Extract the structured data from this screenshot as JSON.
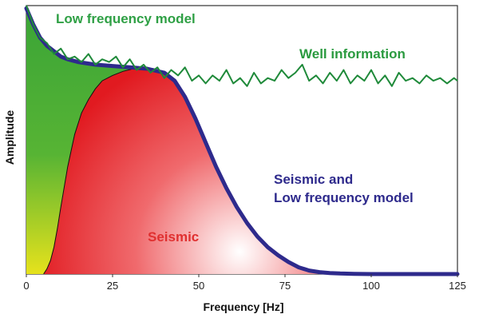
{
  "chart_data": {
    "type": "area",
    "xlabel": "Frequency [Hz]",
    "ylabel": "Amplitude",
    "xlim": [
      0,
      125
    ],
    "ylim": [
      0,
      1
    ],
    "x_ticks": [
      "0",
      "25",
      "50",
      "75",
      "100",
      "125"
    ],
    "y_ticks": [],
    "grid": false,
    "annotations": {
      "low_frequency": "Low frequency model",
      "well": "Well information",
      "combined_line1": "Seismic and",
      "combined_line2": "Low frequency model",
      "seismic": "Seismic"
    },
    "colors": {
      "well": "#1f8a3a",
      "combined": "#2e2a8c",
      "seismic": "#e8262b",
      "low_frequency": "#3aa437",
      "low_frequency_base": "#e6e21c",
      "annotation_low_frequency": "#2fa045",
      "annotation_well": "#2a9a3f",
      "annotation_combined": "#2e2a8c",
      "annotation_seismic": "#e03030"
    },
    "series": [
      {
        "key": "well",
        "x": [
          0,
          2,
          4,
          6,
          8,
          10,
          12,
          14,
          16,
          18,
          20,
          22,
          24,
          26,
          28,
          30,
          32,
          34,
          36,
          38,
          40,
          42,
          44,
          46,
          48,
          50,
          52,
          54,
          56,
          58,
          60,
          62,
          64,
          66,
          68,
          70,
          72,
          74,
          76,
          78,
          80,
          82,
          84,
          86,
          88,
          90,
          92,
          94,
          96,
          98,
          100,
          102,
          104,
          106,
          108,
          110,
          112,
          114,
          116,
          118,
          120,
          122,
          124,
          125
        ],
        "y": [
          1.0,
          0.93,
          0.88,
          0.86,
          0.82,
          0.84,
          0.8,
          0.81,
          0.79,
          0.82,
          0.78,
          0.8,
          0.79,
          0.81,
          0.77,
          0.8,
          0.76,
          0.78,
          0.75,
          0.77,
          0.73,
          0.76,
          0.74,
          0.77,
          0.72,
          0.74,
          0.71,
          0.74,
          0.72,
          0.76,
          0.71,
          0.73,
          0.7,
          0.75,
          0.71,
          0.73,
          0.72,
          0.76,
          0.73,
          0.75,
          0.78,
          0.72,
          0.74,
          0.71,
          0.75,
          0.72,
          0.76,
          0.71,
          0.74,
          0.72,
          0.76,
          0.71,
          0.74,
          0.7,
          0.75,
          0.72,
          0.73,
          0.71,
          0.74,
          0.72,
          0.73,
          0.71,
          0.73,
          0.72
        ]
      },
      {
        "key": "combined",
        "x": [
          0,
          2,
          4,
          6,
          8,
          10,
          12,
          15,
          20,
          25,
          30,
          35,
          40,
          43,
          46,
          49,
          52,
          55,
          58,
          61,
          64,
          67,
          70,
          73,
          76,
          79,
          82,
          85,
          88,
          91,
          95,
          100,
          110,
          125
        ],
        "y": [
          0.99,
          0.93,
          0.88,
          0.85,
          0.83,
          0.81,
          0.8,
          0.79,
          0.78,
          0.775,
          0.77,
          0.765,
          0.75,
          0.72,
          0.66,
          0.58,
          0.49,
          0.4,
          0.32,
          0.25,
          0.19,
          0.14,
          0.1,
          0.07,
          0.045,
          0.025,
          0.013,
          0.007,
          0.004,
          0.002,
          0.001,
          0.0,
          0.0,
          0.0
        ]
      },
      {
        "key": "seismic",
        "x": [
          5,
          6,
          7,
          8,
          9,
          10,
          12,
          14,
          16,
          18,
          20,
          22,
          25,
          28,
          31,
          34,
          37,
          40,
          43,
          46,
          49,
          52,
          55,
          58,
          61,
          64,
          67,
          70,
          73,
          76,
          79,
          82,
          85,
          88,
          91,
          95
        ],
        "y": [
          0.0,
          0.02,
          0.05,
          0.1,
          0.17,
          0.25,
          0.4,
          0.52,
          0.6,
          0.65,
          0.69,
          0.72,
          0.74,
          0.755,
          0.765,
          0.77,
          0.765,
          0.75,
          0.72,
          0.66,
          0.58,
          0.49,
          0.4,
          0.32,
          0.25,
          0.19,
          0.14,
          0.1,
          0.07,
          0.045,
          0.025,
          0.013,
          0.007,
          0.004,
          0.002,
          0.0
        ]
      },
      {
        "key": "low_frequency",
        "x": [
          0,
          2,
          4,
          6,
          8,
          10,
          12,
          15,
          20,
          25,
          30,
          35,
          40,
          43
        ],
        "y": [
          0.99,
          0.93,
          0.88,
          0.85,
          0.83,
          0.81,
          0.8,
          0.79,
          0.78,
          0.775,
          0.77,
          0.765,
          0.75,
          0.72
        ]
      }
    ]
  }
}
